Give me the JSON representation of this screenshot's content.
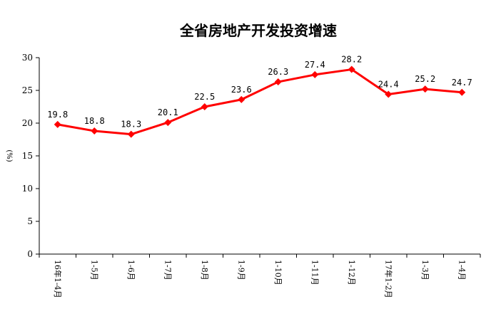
{
  "chart_data": {
    "type": "line",
    "title": "全省房地产开发投资增速",
    "ylabel": "(%)",
    "xlabel": "",
    "ylim": [
      0,
      30
    ],
    "yticks": [
      0,
      5,
      10,
      15,
      20,
      25,
      30
    ],
    "grid": false,
    "legend": "none",
    "categories": [
      "16年1-4月",
      "1-5月",
      "1-6月",
      "1-7月",
      "1-8月",
      "1-9月",
      "1-10月",
      "1-11月",
      "1-12月",
      "17年1-2月",
      "1-3月",
      "1-4月"
    ],
    "series": [
      {
        "values": [
          19.8,
          18.8,
          18.3,
          20.1,
          22.5,
          23.6,
          26.3,
          27.4,
          28.2,
          24.4,
          25.2,
          24.7
        ],
        "labels": [
          "19.8",
          "18.8",
          "18.3",
          "20.1",
          "22.5",
          "23.6",
          "26.3",
          "27.4",
          "28.2",
          "24.4",
          "25.2",
          "24.7"
        ],
        "color": "#ff0000"
      }
    ]
  }
}
